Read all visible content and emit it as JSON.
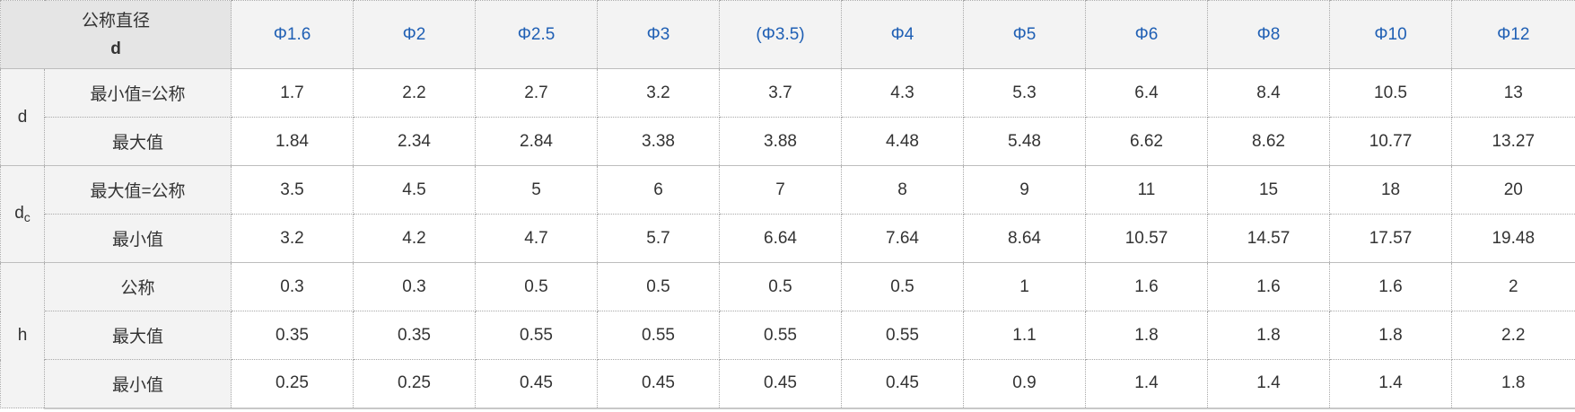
{
  "table": {
    "corner": {
      "label": "公称直径",
      "sublabel": "d"
    },
    "columns": [
      "Φ1.6",
      "Φ2",
      "Φ2.5",
      "Φ3",
      "(Φ3.5)",
      "Φ4",
      "Φ5",
      "Φ6",
      "Φ8",
      "Φ10",
      "Φ12"
    ],
    "groups": [
      {
        "label": "d",
        "label_sub": "",
        "rows": [
          {
            "label": "最小值=公称",
            "values": [
              "1.7",
              "2.2",
              "2.7",
              "3.2",
              "3.7",
              "4.3",
              "5.3",
              "6.4",
              "8.4",
              "10.5",
              "13"
            ]
          },
          {
            "label": "最大值",
            "values": [
              "1.84",
              "2.34",
              "2.84",
              "3.38",
              "3.88",
              "4.48",
              "5.48",
              "6.62",
              "8.62",
              "10.77",
              "13.27"
            ]
          }
        ]
      },
      {
        "label": "d",
        "label_sub": "c",
        "rows": [
          {
            "label": "最大值=公称",
            "values": [
              "3.5",
              "4.5",
              "5",
              "6",
              "7",
              "8",
              "9",
              "11",
              "15",
              "18",
              "20"
            ]
          },
          {
            "label": "最小值",
            "values": [
              "3.2",
              "4.2",
              "4.7",
              "5.7",
              "6.64",
              "7.64",
              "8.64",
              "10.57",
              "14.57",
              "17.57",
              "19.48"
            ]
          }
        ]
      },
      {
        "label": "h",
        "label_sub": "",
        "rows": [
          {
            "label": "公称",
            "values": [
              "0.3",
              "0.3",
              "0.5",
              "0.5",
              "0.5",
              "0.5",
              "1",
              "1.6",
              "1.6",
              "1.6",
              "2"
            ]
          },
          {
            "label": "最大值",
            "values": [
              "0.35",
              "0.35",
              "0.55",
              "0.55",
              "0.55",
              "0.55",
              "1.1",
              "1.8",
              "1.8",
              "1.8",
              "2.2"
            ]
          },
          {
            "label": "最小值",
            "values": [
              "0.25",
              "0.25",
              "0.45",
              "0.45",
              "0.45",
              "0.45",
              "0.9",
              "1.4",
              "1.4",
              "1.4",
              "1.8"
            ]
          }
        ]
      }
    ]
  },
  "colors": {
    "header_text": "#1f5fb4",
    "label_bg": "#f3f3f3",
    "corner_bg": "#e5e5e5",
    "body_text": "#333333"
  }
}
